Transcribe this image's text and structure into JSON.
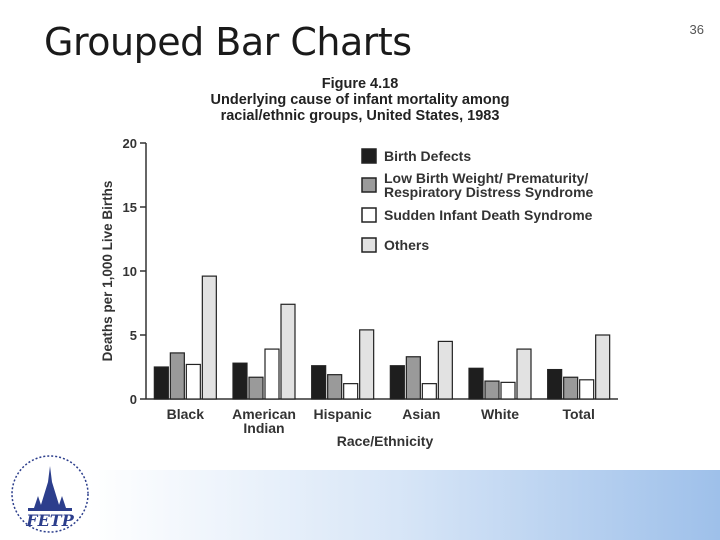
{
  "slide": {
    "title": "Grouped Bar Charts",
    "number": "36",
    "logo_text": "FETP"
  },
  "chart_data": {
    "type": "bar",
    "title": [
      "Figure 4.18",
      "Underlying cause of infant mortality among",
      "racial/ethnic groups, United States, 1983"
    ],
    "xlabel": "Race/Ethnicity",
    "ylabel": "Deaths per 1,000 Live Births",
    "ylim": [
      0,
      20
    ],
    "yticks": [
      0,
      5,
      10,
      15,
      20
    ],
    "categories": [
      [
        "Black"
      ],
      [
        "American",
        "Indian"
      ],
      [
        "Hispanic"
      ],
      [
        "Asian"
      ],
      [
        "White"
      ],
      [
        "Total"
      ]
    ],
    "series": [
      {
        "name": "Birth Defects",
        "color": "#1e1e1e",
        "values": [
          2.5,
          2.8,
          2.6,
          2.6,
          2.4,
          2.3
        ]
      },
      {
        "name": "Low Birth Weight/ Prematurity/ Respiratory Distress Syndrome",
        "color": "#9a9a9a",
        "values": [
          3.6,
          1.7,
          1.9,
          3.3,
          1.4,
          1.7
        ]
      },
      {
        "name": "Sudden Infant Death Syndrome",
        "color": "#ffffff",
        "values": [
          2.7,
          3.9,
          1.2,
          1.2,
          1.3,
          1.5
        ]
      },
      {
        "name": "Others",
        "color": "#e2e2e2",
        "values": [
          9.6,
          7.4,
          5.4,
          4.5,
          3.9,
          5.0
        ]
      }
    ],
    "legend_position": "top-right",
    "grid": false
  },
  "legend_lines": [
    [
      "Birth Defects"
    ],
    [
      "Low Birth Weight/ Prematurity/",
      "Respiratory Distress Syndrome"
    ],
    [
      "Sudden Infant Death Syndrome"
    ],
    [
      "Others"
    ]
  ]
}
